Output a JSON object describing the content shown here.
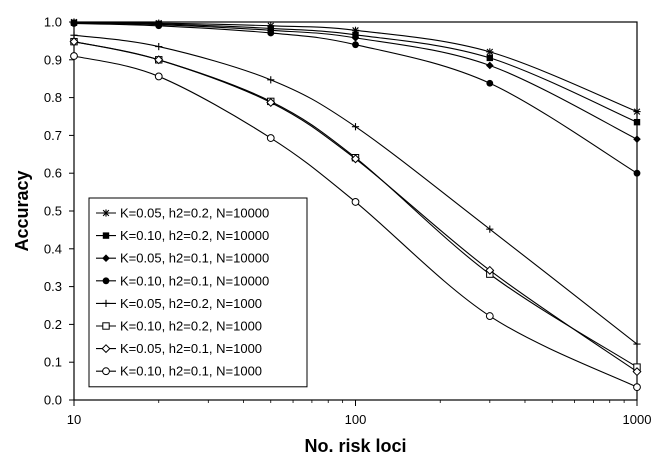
{
  "chart_data": {
    "type": "line",
    "title": "",
    "xlabel": "No. risk loci",
    "ylabel": "Accuracy",
    "x_scale": "log",
    "xlim": [
      10,
      1000
    ],
    "ylim": [
      0,
      1
    ],
    "x_ticks": [
      "10",
      "100",
      "1000"
    ],
    "y_ticks": [
      "0.0",
      "0.1",
      "0.2",
      "0.3",
      "0.4",
      "0.5",
      "0.6",
      "0.7",
      "0.8",
      "0.9",
      "1.0"
    ],
    "grid": false,
    "legend_position": "lower-left",
    "x": [
      10,
      20,
      50,
      100,
      300,
      1000
    ],
    "series": [
      {
        "name": "K=0.05, h2=0.2, N=10000",
        "marker": "asterisk",
        "values": [
          1.0,
          0.997,
          0.99,
          0.978,
          0.921,
          0.763
        ]
      },
      {
        "name": "K=0.10, h2=0.2, N=10000",
        "marker": "filled-square",
        "values": [
          0.998,
          0.995,
          0.983,
          0.966,
          0.905,
          0.735
        ]
      },
      {
        "name": "K=0.05, h2=0.1, N=10000",
        "marker": "filled-diamond",
        "values": [
          0.997,
          0.993,
          0.978,
          0.958,
          0.885,
          0.69
        ]
      },
      {
        "name": "K=0.10, h2=0.1, N=10000",
        "marker": "filled-circle",
        "values": [
          0.996,
          0.99,
          0.971,
          0.94,
          0.838,
          0.6
        ]
      },
      {
        "name": "K=0.05, h2=0.2, N=1000",
        "marker": "plus",
        "values": [
          0.965,
          0.935,
          0.847,
          0.723,
          0.452,
          0.148
        ]
      },
      {
        "name": "K=0.10, h2=0.2, N=1000",
        "marker": "open-square",
        "values": [
          0.948,
          0.9,
          0.79,
          0.641,
          0.333,
          0.087
        ]
      },
      {
        "name": "K=0.05, h2=0.1, N=1000",
        "marker": "open-diamond",
        "values": [
          0.948,
          0.9,
          0.787,
          0.638,
          0.343,
          0.075
        ]
      },
      {
        "name": "K=0.10, h2=0.1, N=1000",
        "marker": "open-circle",
        "values": [
          0.91,
          0.856,
          0.693,
          0.524,
          0.222,
          0.034
        ]
      }
    ]
  }
}
